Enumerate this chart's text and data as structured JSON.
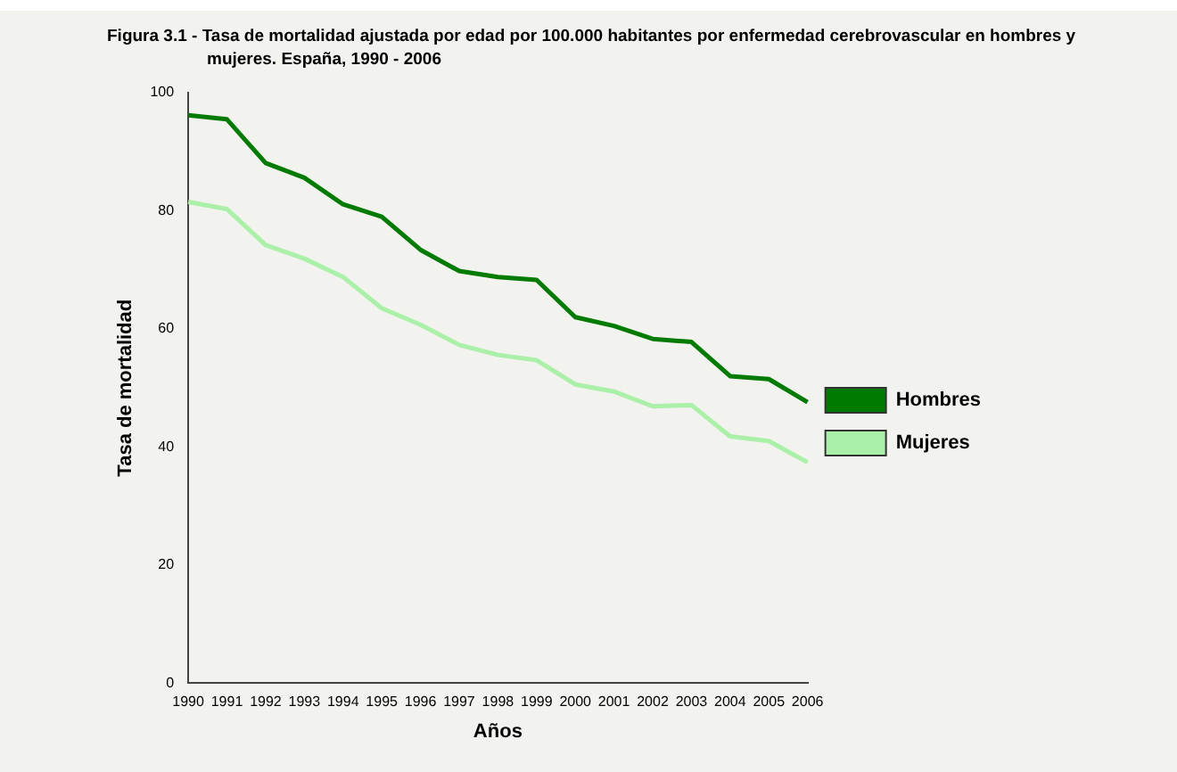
{
  "chart_data": {
    "type": "line",
    "title": "Figura 3.1 -  Tasa de mortalidad ajustada por edad por 100.000 habitantes por enfermedad cerebrovascular  en hombres y mujeres.  España, 1990 - 2006",
    "xlabel": "Años",
    "ylabel": "Tasa de mortalidad",
    "categories": [
      "1990",
      "1991",
      "1992",
      "1993",
      "1994",
      "1995",
      "1996",
      "1997",
      "1998",
      "1999",
      "2000",
      "2001",
      "2002",
      "2003",
      "2004",
      "2005",
      "2006"
    ],
    "series": [
      {
        "name": "Hombres",
        "color": "#007a00",
        "values": [
          96.2,
          95.5,
          88.1,
          85.6,
          81.1,
          79.0,
          73.4,
          69.8,
          68.8,
          68.3,
          62.0,
          60.5,
          58.3,
          57.8,
          52.0,
          51.5,
          47.6
        ]
      },
      {
        "name": "Mujeres",
        "color": "#aaf0a8",
        "values": [
          81.5,
          80.3,
          74.2,
          71.9,
          68.8,
          63.5,
          60.7,
          57.3,
          55.6,
          54.7,
          50.6,
          49.4,
          46.9,
          47.1,
          41.8,
          41.0,
          37.4
        ]
      }
    ],
    "ylim": [
      0,
      100
    ],
    "yticks": [
      0,
      20,
      40,
      60,
      80,
      100
    ],
    "grid": false,
    "legend": "right",
    "marker": "none",
    "line_style": "solid"
  }
}
